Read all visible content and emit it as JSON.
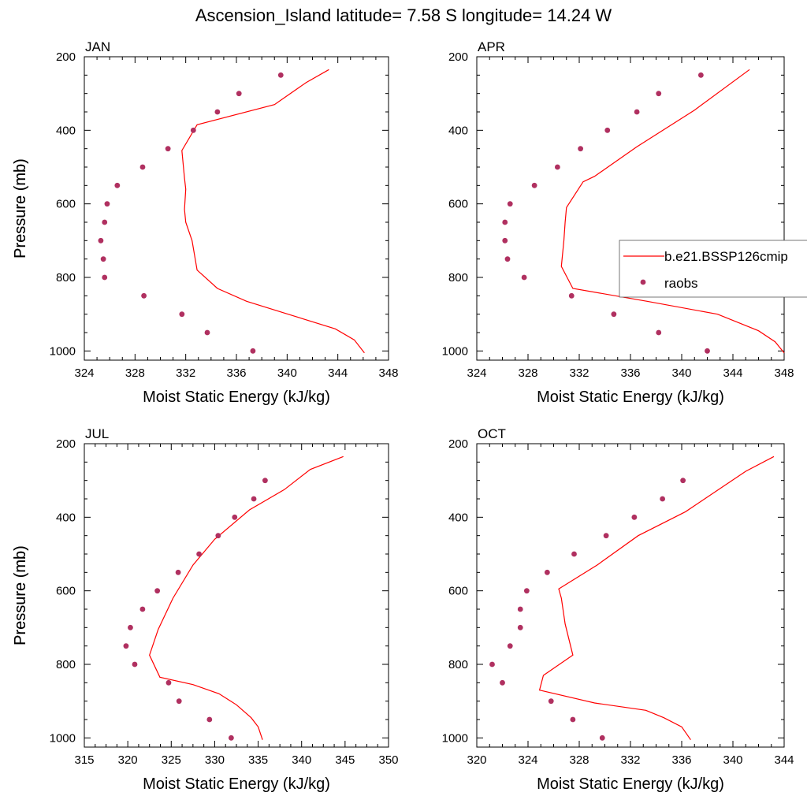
{
  "title": "Ascension_Island  latitude= 7.58 S longitude= 14.24 W",
  "colors": {
    "model": "#ff0000",
    "obs": "#b03060"
  },
  "legend": {
    "model_label": "b.e21.BSSP126cmip",
    "obs_label": "raobs"
  },
  "chart_data": [
    {
      "type": "line+scatter",
      "panel": "JAN",
      "title": "JAN",
      "xlabel": "Moist Static Energy (kJ/kg)",
      "ylabel": "Pressure (mb)",
      "xlim": [
        324,
        348
      ],
      "ylim": [
        1025,
        200
      ],
      "xticks": [
        324,
        328,
        332,
        336,
        340,
        344,
        348
      ],
      "yticks": [
        200,
        400,
        600,
        800,
        1000
      ],
      "model": {
        "name": "b.e21.BSSP126cmip",
        "x": [
          346.1,
          345.3,
          343.8,
          339.6,
          336.8,
          334.5,
          332.9,
          332.5,
          332.0,
          331.9,
          332.0,
          331.9,
          331.7,
          332.9,
          339.0,
          341.5,
          343.3
        ],
        "y": [
          1005,
          970,
          940,
          895,
          865,
          830,
          780,
          700,
          650,
          615,
          560,
          530,
          455,
          385,
          330,
          270,
          235
        ]
      },
      "obs": {
        "name": "raobs",
        "x": [
          339.5,
          336.2,
          334.5,
          332.6,
          330.6,
          328.6,
          326.6,
          325.8,
          325.6,
          325.3,
          325.5,
          325.6,
          328.7,
          331.7,
          333.7,
          337.3
        ],
        "y": [
          250,
          300,
          350,
          400,
          450,
          500,
          550,
          600,
          650,
          700,
          750,
          800,
          850,
          900,
          950,
          1000
        ]
      }
    },
    {
      "type": "line+scatter",
      "panel": "APR",
      "title": "APR",
      "xlabel": "Moist Static Energy (kJ/kg)",
      "ylabel": "Pressure (mb)",
      "xlim": [
        324,
        348
      ],
      "ylim": [
        1025,
        200
      ],
      "xticks": [
        324,
        328,
        332,
        336,
        340,
        344,
        348
      ],
      "yticks": [
        200,
        400,
        600,
        800,
        1000
      ],
      "model": {
        "name": "b.e21.BSSP126cmip",
        "x": [
          348.0,
          347.3,
          346.0,
          342.8,
          337.3,
          331.5,
          330.6,
          330.8,
          330.9,
          331.0,
          332.3,
          333.2,
          336.5,
          341.0,
          345.3
        ],
        "y": [
          1005,
          975,
          945,
          900,
          865,
          830,
          770,
          700,
          650,
          610,
          540,
          525,
          445,
          345,
          235
        ]
      },
      "obs": {
        "name": "raobs",
        "x": [
          341.5,
          338.2,
          336.5,
          334.2,
          332.1,
          330.3,
          328.5,
          326.6,
          326.2,
          326.2,
          326.4,
          327.7,
          331.4,
          334.7,
          338.2,
          342.0
        ],
        "y": [
          250,
          300,
          350,
          400,
          450,
          500,
          550,
          600,
          650,
          700,
          750,
          800,
          850,
          900,
          950,
          1000
        ]
      }
    },
    {
      "type": "line+scatter",
      "panel": "JUL",
      "title": "JUL",
      "xlabel": "Moist Static Energy (kJ/kg)",
      "ylabel": "Pressure (mb)",
      "xlim": [
        315,
        350
      ],
      "ylim": [
        1025,
        200
      ],
      "xticks": [
        315,
        320,
        325,
        330,
        335,
        340,
        345,
        350
      ],
      "yticks": [
        200,
        400,
        600,
        800,
        1000
      ],
      "model": {
        "name": "b.e21.BSSP126cmip",
        "x": [
          335.5,
          335.0,
          334.2,
          332.5,
          330.5,
          327.5,
          323.7,
          322.5,
          323.5,
          325.2,
          327.5,
          330.0,
          334.0,
          338.0,
          341.0,
          344.8
        ],
        "y": [
          1005,
          970,
          945,
          910,
          880,
          855,
          835,
          775,
          705,
          620,
          530,
          460,
          380,
          325,
          270,
          235
        ]
      },
      "obs": {
        "name": "raobs",
        "x": [
          335.8,
          334.5,
          332.3,
          330.4,
          328.2,
          325.8,
          323.4,
          321.7,
          320.3,
          319.8,
          320.8,
          324.7,
          325.9,
          329.4,
          331.9
        ],
        "y": [
          300,
          350,
          400,
          450,
          500,
          550,
          600,
          650,
          700,
          750,
          800,
          850,
          900,
          950,
          1000
        ]
      }
    },
    {
      "type": "line+scatter",
      "panel": "OCT",
      "title": "OCT",
      "xlabel": "Moist Static Energy (kJ/kg)",
      "ylabel": "Pressure (mb)",
      "xlim": [
        320,
        344
      ],
      "ylim": [
        1025,
        200
      ],
      "xticks": [
        320,
        324,
        328,
        332,
        336,
        340,
        344
      ],
      "yticks": [
        200,
        400,
        600,
        800,
        1000
      ],
      "model": {
        "name": "b.e21.BSSP126cmip",
        "x": [
          336.7,
          336.0,
          334.6,
          333.2,
          329.2,
          324.9,
          325.2,
          327.5,
          326.9,
          326.6,
          326.4,
          329.4,
          332.6,
          336.3,
          341.0,
          343.2
        ],
        "y": [
          1005,
          970,
          945,
          925,
          905,
          870,
          830,
          775,
          690,
          620,
          595,
          530,
          450,
          385,
          275,
          235
        ]
      },
      "obs": {
        "name": "raobs",
        "x": [
          336.1,
          334.5,
          332.3,
          330.1,
          327.6,
          325.5,
          323.9,
          323.4,
          323.4,
          322.6,
          321.2,
          322.0,
          325.8,
          327.5,
          329.8
        ],
        "y": [
          300,
          350,
          400,
          450,
          500,
          550,
          600,
          650,
          700,
          750,
          800,
          850,
          900,
          950,
          1000
        ]
      }
    }
  ]
}
